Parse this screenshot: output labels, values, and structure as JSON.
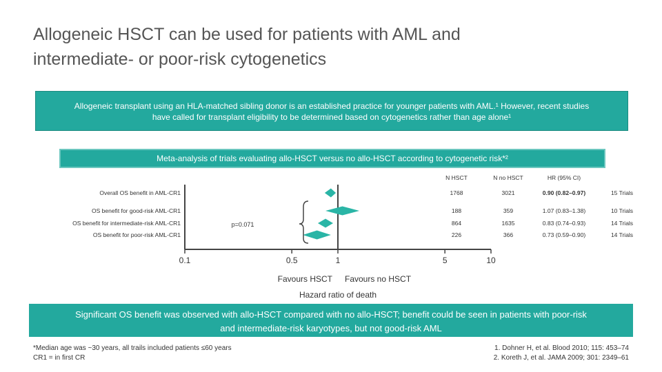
{
  "title_line1": "Allogeneic HSCT can be used for patients with AML and",
  "title_line2": "intermediate- or poor-risk cytogenetics",
  "banner_line1": "Allogeneic transplant using an HLA-matched sibling donor is an established practice for younger patients with AML.¹ However, recent studies",
  "banner_line2": "have called for transplant eligibility to be determined based on cytogenetics rather than age alone¹",
  "meta_box_text": "Meta-analysis of trials evaluating allo-HSCT versus no allo-HSCT according to cytogenetic risk*²",
  "bottom_banner_line1": "Significant OS benefit was observed with allo-HSCT compared with no allo-HSCT; benefit could be seen in patients with poor-risk",
  "bottom_banner_line2": "and intermediate-risk karyotypes, but not good-risk AML",
  "footnote_line1": "*Median age was ~30 years, all trails included patients ≤60 years",
  "footnote_line2": "CR1 = in first CR",
  "ref1": "1. Dohner H, et al. Blood 2010; 115: 453–74",
  "ref2": "2. Koreth J, et al. JAMA 2009; 301: 2349–61",
  "colors": {
    "teal": "#23a99e",
    "diamond": "#2ab5a6",
    "axis": "#444444"
  },
  "chart_data": {
    "type": "forest",
    "xscale": "log",
    "xlabel": "Hazard ratio of death",
    "xticks": [
      0.1,
      0.5,
      1,
      5,
      10
    ],
    "xtick_labels": [
      "0.1",
      "0.5",
      "1",
      "5",
      "10"
    ],
    "favours_left": "Favours HSCT",
    "favours_right": "Favours no HSCT",
    "pvalue_label": "p=0.071",
    "column_headers": [
      "N HSCT",
      "N no HSCT",
      "HR (95% CI)"
    ],
    "rows": [
      {
        "label": "Overall OS benefit in AML-CR1",
        "hr": 0.9,
        "lo": 0.82,
        "hi": 0.97,
        "n_hsct": "1768",
        "n_no": "3021",
        "hr_text": "0.90 (0.82–0.97)",
        "trials": "15 Trials",
        "bold": true
      },
      {
        "label": "OS benefit for good-risk AML-CR1",
        "hr": 1.07,
        "lo": 0.83,
        "hi": 1.38,
        "n_hsct": "188",
        "n_no": "359",
        "hr_text": "1.07 (0.83–1.38)",
        "trials": "10 Trials",
        "bold": false
      },
      {
        "label": "OS benefit for intermediate-risk AML-CR1",
        "hr": 0.83,
        "lo": 0.74,
        "hi": 0.93,
        "n_hsct": "864",
        "n_no": "1635",
        "hr_text": "0.83 (0.74–0.93)",
        "trials": "14 Trials",
        "bold": false
      },
      {
        "label": "OS benefit for poor-risk AML-CR1",
        "hr": 0.73,
        "lo": 0.59,
        "hi": 0.9,
        "n_hsct": "226",
        "n_no": "366",
        "hr_text": "0.73 (0.59–0.90)",
        "trials": "14 Trials",
        "bold": false
      }
    ]
  }
}
